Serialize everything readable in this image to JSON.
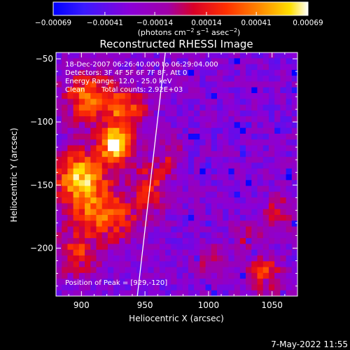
{
  "chart_data": {
    "type": "heatmap",
    "title": "Reconstructed RHESSI Image",
    "xlabel": "Heliocentric X (arcsec)",
    "ylabel": "Heliocentric Y (arcsec)",
    "xlim": [
      880,
      1070
    ],
    "ylim": [
      -238,
      -45
    ],
    "x_ticks": [
      {
        "value": 900,
        "label": "900"
      },
      {
        "value": 950,
        "label": "950"
      },
      {
        "value": 1000,
        "label": "1000"
      },
      {
        "value": 1050,
        "label": "1050"
      }
    ],
    "y_ticks": [
      {
        "value": -50,
        "label": "−50"
      },
      {
        "value": -100,
        "label": "−100"
      },
      {
        "value": -150,
        "label": "−150"
      },
      {
        "value": -200,
        "label": "−200"
      }
    ],
    "colorbar": {
      "min": -0.00069,
      "max": 0.00069,
      "ticks": [
        {
          "value": -0.00069,
          "label": "−0.00069"
        },
        {
          "value": -0.00041,
          "label": "−0.00041"
        },
        {
          "value": -0.00014,
          "label": "−0.00014"
        },
        {
          "value": 0.00014,
          "label": "0.00014"
        },
        {
          "value": 0.00041,
          "label": "0.00041"
        },
        {
          "value": 0.00069,
          "label": "0.00069"
        }
      ],
      "unit_parts": {
        "open": "(photons cm",
        "sup1": "−2",
        "s": " s",
        "sup2": "−1",
        "asec": " asec",
        "sup3": "−2",
        "close": ")"
      }
    },
    "annotations": [
      "18-Dec-2007 06:26:40.000 to 06:29:04.000",
      "Detectors: 3F 4F 5F 6F 7F 8F, Att 0",
      "Energy Range: 12.0 - 25.0 keV",
      "Clean",
      "Total counts: 2.92E+03"
    ],
    "peak_label": "Position of Peak = [929,-120]",
    "peak": {
      "x": 929,
      "y": -120
    },
    "limb_line": [
      [
        944,
        -238
      ],
      [
        966,
        -45
      ]
    ],
    "grid": {
      "nx": 42,
      "ny": 42,
      "seed": 7
    },
    "sources": [
      {
        "x": 928,
        "y": -118,
        "sx": 9,
        "sy": 10,
        "a": 1.0
      },
      {
        "x": 900,
        "y": -145,
        "sx": 14,
        "sy": 16,
        "a": 0.85
      },
      {
        "x": 905,
        "y": -80,
        "sx": 14,
        "sy": 14,
        "a": 0.6
      },
      {
        "x": 935,
        "y": -90,
        "sx": 12,
        "sy": 12,
        "a": 0.55
      },
      {
        "x": 920,
        "y": -175,
        "sx": 18,
        "sy": 14,
        "a": 0.55
      },
      {
        "x": 895,
        "y": -205,
        "sx": 12,
        "sy": 12,
        "a": 0.45
      },
      {
        "x": 955,
        "y": -150,
        "sx": 10,
        "sy": 14,
        "a": 0.42
      },
      {
        "x": 1045,
        "y": -222,
        "sx": 10,
        "sy": 10,
        "a": 0.5
      },
      {
        "x": 1055,
        "y": -172,
        "sx": 7,
        "sy": 10,
        "a": 0.4
      },
      {
        "x": 1000,
        "y": -210,
        "sx": 10,
        "sy": 8,
        "a": 0.33
      },
      {
        "x": 1030,
        "y": -190,
        "sx": 8,
        "sy": 8,
        "a": 0.3
      },
      {
        "x": 970,
        "y": -125,
        "sx": 6,
        "sy": 10,
        "a": 0.3
      }
    ]
  },
  "footer": {
    "timestamp": "7-May-2022 11:55"
  }
}
